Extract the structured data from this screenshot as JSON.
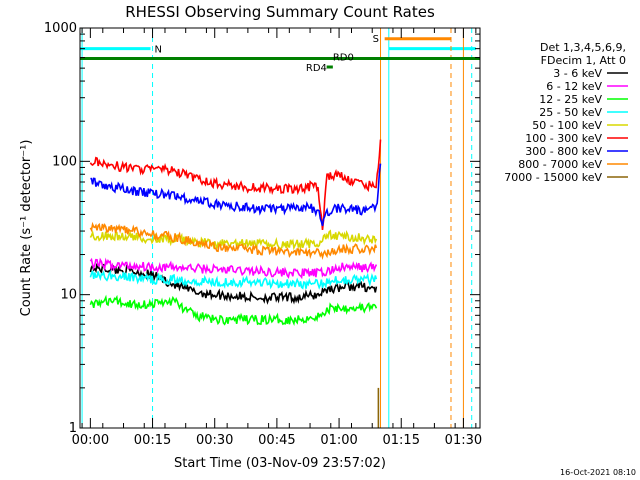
{
  "chart_data": {
    "type": "line",
    "title": "RHESSI Observing Summary Count Rates",
    "xlabel": "Start Time (03-Nov-09 23:57:02)",
    "ylabel": "Count Rate (s⁻¹ detector⁻¹)",
    "y_scale": "log",
    "ylim": [
      1,
      1000
    ],
    "xlim_minutes_from_start": [
      -2.5,
      94
    ],
    "y_ticks": [
      {
        "value": 1,
        "label": "1"
      },
      {
        "value": 10,
        "label": "10"
      },
      {
        "value": 100,
        "label": "100"
      },
      {
        "value": 1000,
        "label": "1000"
      }
    ],
    "x_ticks": [
      {
        "minute": 0,
        "label": "00:00"
      },
      {
        "minute": 15,
        "label": "00:15"
      },
      {
        "minute": 30,
        "label": "00:30"
      },
      {
        "minute": 45,
        "label": "00:45"
      },
      {
        "minute": 60,
        "label": "01:00"
      },
      {
        "minute": 75,
        "label": "01:15"
      },
      {
        "minute": 90,
        "label": "01:30"
      }
    ],
    "legend_position": "right",
    "legend_header": [
      "Det 1,3,4,5,6,9,",
      "FDecim 1, Att 0"
    ],
    "series": [
      {
        "name": "3 - 6 keV",
        "color": "#000000",
        "points": [
          [
            0,
            16
          ],
          [
            10,
            15
          ],
          [
            15,
            14
          ],
          [
            20,
            12
          ],
          [
            25,
            10.5
          ],
          [
            30,
            10
          ],
          [
            40,
            9.5
          ],
          [
            50,
            9.5
          ],
          [
            55,
            10
          ],
          [
            57,
            11
          ],
          [
            62,
            11.5
          ],
          [
            66,
            11.5
          ],
          [
            69,
            11
          ]
        ]
      },
      {
        "name": "6 - 12 keV",
        "color": "#ff00ff",
        "points": [
          [
            0,
            17
          ],
          [
            10,
            16.5
          ],
          [
            20,
            16
          ],
          [
            30,
            15.5
          ],
          [
            40,
            15
          ],
          [
            50,
            14.5
          ],
          [
            56,
            14.5
          ],
          [
            60,
            16
          ],
          [
            69,
            16
          ]
        ]
      },
      {
        "name": "12 - 25 keV",
        "color": "#00ff00",
        "points": [
          [
            0,
            8.5
          ],
          [
            5,
            9
          ],
          [
            10,
            8.5
          ],
          [
            15,
            8.5
          ],
          [
            20,
            9
          ],
          [
            25,
            7
          ],
          [
            30,
            6.5
          ],
          [
            40,
            6.5
          ],
          [
            50,
            6.5
          ],
          [
            56,
            7
          ],
          [
            58,
            8
          ],
          [
            64,
            8
          ],
          [
            69,
            8
          ]
        ]
      },
      {
        "name": "25 - 50 keV",
        "color": "#00ffff",
        "points": [
          [
            0,
            14
          ],
          [
            10,
            13.5
          ],
          [
            15,
            13
          ],
          [
            20,
            13
          ],
          [
            30,
            12.5
          ],
          [
            40,
            12.5
          ],
          [
            50,
            12
          ],
          [
            56,
            12
          ],
          [
            58,
            13
          ],
          [
            69,
            13
          ]
        ]
      },
      {
        "name": "50 - 100 keV",
        "color": "#d8d800",
        "points": [
          [
            0,
            28
          ],
          [
            10,
            27
          ],
          [
            20,
            26
          ],
          [
            30,
            24
          ],
          [
            40,
            24
          ],
          [
            50,
            24
          ],
          [
            55,
            24
          ],
          [
            57,
            28
          ],
          [
            69,
            26
          ]
        ]
      },
      {
        "name": "100 - 300 keV",
        "color": "#ff0000",
        "points": [
          [
            0,
            100
          ],
          [
            10,
            88
          ],
          [
            15,
            88
          ],
          [
            20,
            85
          ],
          [
            25,
            75
          ],
          [
            30,
            68
          ],
          [
            40,
            63
          ],
          [
            50,
            62
          ],
          [
            53,
            65
          ],
          [
            55,
            63
          ],
          [
            56,
            30
          ],
          [
            57,
            78
          ],
          [
            60,
            78
          ],
          [
            66,
            65
          ],
          [
            69,
            68
          ],
          [
            70,
            135
          ]
        ]
      },
      {
        "name": "300 - 800 keV",
        "color": "#0000ff",
        "points": [
          [
            0,
            70
          ],
          [
            10,
            60
          ],
          [
            15,
            58
          ],
          [
            20,
            55
          ],
          [
            30,
            48
          ],
          [
            40,
            44
          ],
          [
            50,
            44
          ],
          [
            53,
            45
          ],
          [
            55,
            42
          ],
          [
            56,
            34
          ],
          [
            57,
            42
          ],
          [
            60,
            45
          ],
          [
            66,
            43
          ],
          [
            69,
            45
          ],
          [
            70,
            95
          ]
        ]
      },
      {
        "name": "800 - 7000 keV",
        "color": "#ff8800",
        "points": [
          [
            0,
            33
          ],
          [
            10,
            30
          ],
          [
            20,
            27
          ],
          [
            30,
            23
          ],
          [
            40,
            21.5
          ],
          [
            50,
            20.5
          ],
          [
            55,
            20.5
          ],
          [
            57,
            20.5
          ],
          [
            60,
            22
          ],
          [
            69,
            22
          ]
        ]
      },
      {
        "name": "7000 - 15000 keV",
        "color": "#8b6508",
        "points": [
          [
            69.5,
            1
          ],
          [
            69.5,
            2
          ]
        ]
      }
    ],
    "flags": [
      {
        "label": "N",
        "color": "#00ffff",
        "y_level": 700,
        "ranges": [
          [
            -2.5,
            14.5
          ],
          [
            72,
            93
          ]
        ],
        "markers": [
          -2,
          15,
          72,
          92
        ]
      },
      {
        "label": "S",
        "color": "#ff8800",
        "y_level": 830,
        "ranges": [
          [
            71,
            87
          ]
        ],
        "markers": [
          70,
          87,
          90
        ]
      },
      {
        "label": "RD0",
        "color": "#008000",
        "y_level": 590,
        "ranges": [
          [
            -2.5,
            94
          ]
        ],
        "markers": []
      },
      {
        "label": "RD4",
        "color": "#008000",
        "y_level": 510,
        "ranges": [
          [
            57,
            58.5
          ]
        ],
        "markers": []
      }
    ],
    "timestamp": "16-Oct-2021 08:10"
  }
}
